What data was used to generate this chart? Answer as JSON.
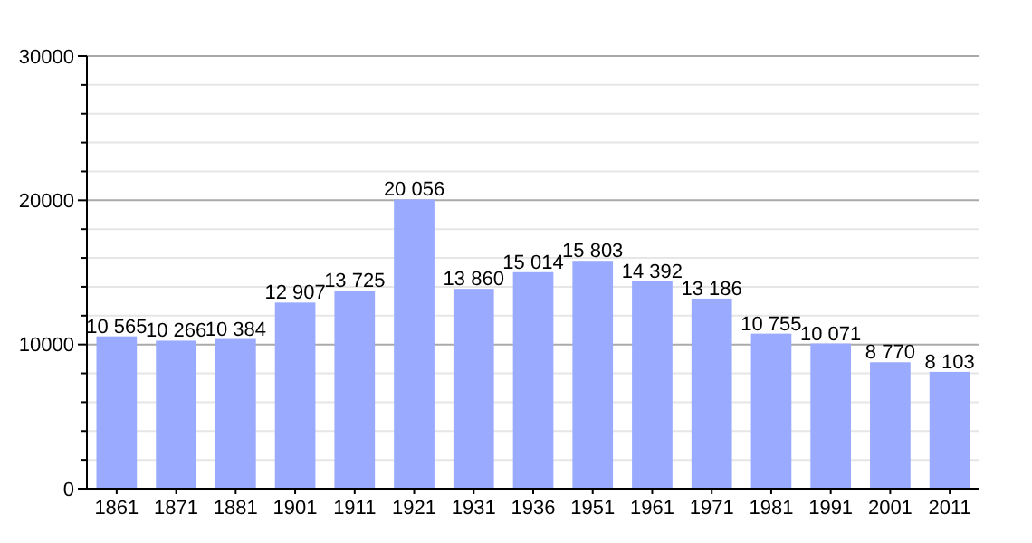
{
  "chart_data": {
    "type": "bar",
    "categories": [
      "1861",
      "1871",
      "1881",
      "1901",
      "1911",
      "1921",
      "1931",
      "1936",
      "1951",
      "1961",
      "1971",
      "1981",
      "1991",
      "2001",
      "2011"
    ],
    "values": [
      10565,
      10266,
      10384,
      12907,
      13725,
      20056,
      13860,
      15014,
      15803,
      14392,
      13186,
      10755,
      10071,
      8770,
      8103
    ],
    "value_labels": [
      "10 565",
      "10 266",
      "10 384",
      "12 907",
      "13 725",
      "20 056",
      "13 860",
      "15 014",
      "15 803",
      "14 392",
      "13 186",
      "10 755",
      "10 071",
      "8 770",
      "8 103"
    ],
    "color": "#99aaff",
    "ylim": [
      0,
      30000
    ],
    "yticks": [
      0,
      {
        "value": 2000,
        "label": null
      },
      {
        "value": 4000,
        "label": null
      },
      {
        "value": 6000,
        "label": null
      },
      {
        "value": 8000,
        "label": null
      },
      10000,
      {
        "value": 12000,
        "label": null
      },
      {
        "value": 14000,
        "label": null
      },
      {
        "value": 16000,
        "label": null
      },
      {
        "value": 18000,
        "label": null
      },
      20000,
      {
        "value": 22000,
        "label": null
      },
      {
        "value": 24000,
        "label": null
      },
      {
        "value": 26000,
        "label": null
      },
      {
        "value": 28000,
        "label": null
      },
      30000
    ],
    "grid": true
  }
}
